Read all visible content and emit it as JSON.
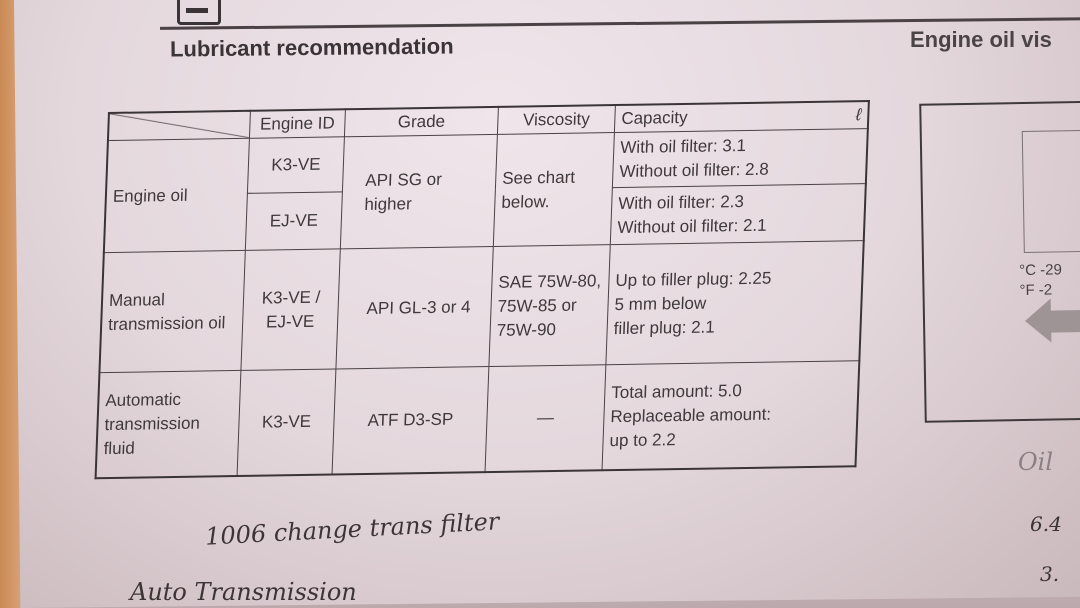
{
  "page": {
    "title": "Lubricant recommendation",
    "right_title": "Engine oil vis"
  },
  "table": {
    "headers": [
      "",
      "Engine ID",
      "Grade",
      "Viscosity",
      "Capacity"
    ],
    "capacity_unit": "ℓ",
    "engine_oil": {
      "label": "Engine oil",
      "ids": [
        "K3-VE",
        "EJ-VE"
      ],
      "grade": "API SG or higher",
      "viscosity": "See chart below.",
      "capacity": [
        [
          "With oil filter: 3.1",
          "Without oil filter: 2.8"
        ],
        [
          "With oil filter: 2.3",
          "Without oil filter: 2.1"
        ]
      ]
    },
    "manual": {
      "label": "Manual transmission oil",
      "id": "K3-VE / EJ-VE",
      "grade": "API GL-3 or 4",
      "viscosity": "SAE 75W-80, 75W-85 or 75W-90",
      "capacity": [
        "Up to filler plug: 2.25",
        "5 mm below",
        "filler plug: 2.1"
      ]
    },
    "auto": {
      "label": "Automatic transmission fluid",
      "id": "K3-VE",
      "grade": "ATF D3-SP",
      "viscosity": "—",
      "capacity": [
        "Total amount: 5.0",
        "Replaceable amount:",
        "up to 2.2"
      ]
    }
  },
  "chart": {
    "unit_c": "°C -29",
    "unit_f": "°F -2"
  },
  "handwriting": [
    "1006 change trans filter",
    "Auto Transmission",
    "Oil",
    "6.4",
    "3."
  ]
}
